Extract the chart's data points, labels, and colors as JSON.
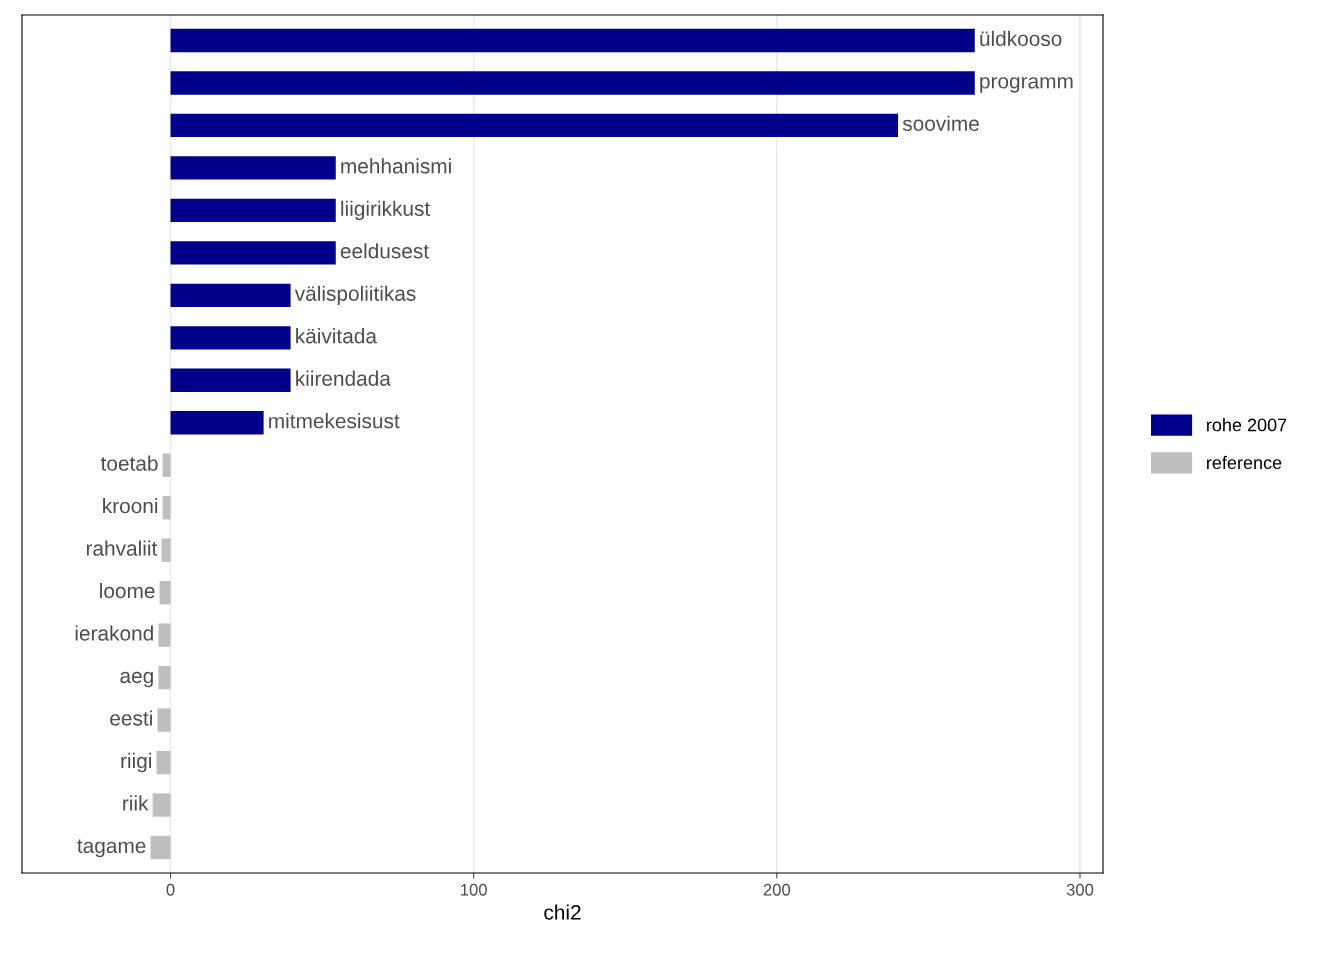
{
  "chart_data": {
    "type": "bar",
    "orientation": "horizontal",
    "xlabel": "chi2",
    "categories": [
      "üldkooso",
      "programm",
      "soovime",
      "mehhanismi",
      "liigirikkust",
      "eeldusest",
      "välispoliitikas",
      "käivitada",
      "kiirendada",
      "mitmekesisust",
      "toetab",
      "krooni",
      "rahvaliit",
      "loome",
      "ierakond",
      "aeg",
      "eesti",
      "riigi",
      "riik",
      "tagame"
    ],
    "series": [
      {
        "name": "rohe 2007",
        "color": "#00008b",
        "values": [
          265.3,
          265.3,
          240,
          54.5,
          54.5,
          54.5,
          39.6,
          39.6,
          39.6,
          30.7,
          null,
          null,
          null,
          null,
          null,
          null,
          null,
          null,
          null,
          null
        ]
      },
      {
        "name": "reference",
        "color": "#bebebe",
        "values": [
          null,
          null,
          null,
          null,
          null,
          null,
          null,
          null,
          null,
          null,
          -2.6,
          -2.6,
          -3,
          -3.6,
          -4,
          -4,
          -4.3,
          -4.6,
          -5.9,
          -6.6
        ]
      }
    ],
    "xlim": [
      -49,
      307.6
    ],
    "xticks": [
      0,
      100,
      200,
      300
    ],
    "grid": "x",
    "legend": "right",
    "tick_labels": "x"
  }
}
